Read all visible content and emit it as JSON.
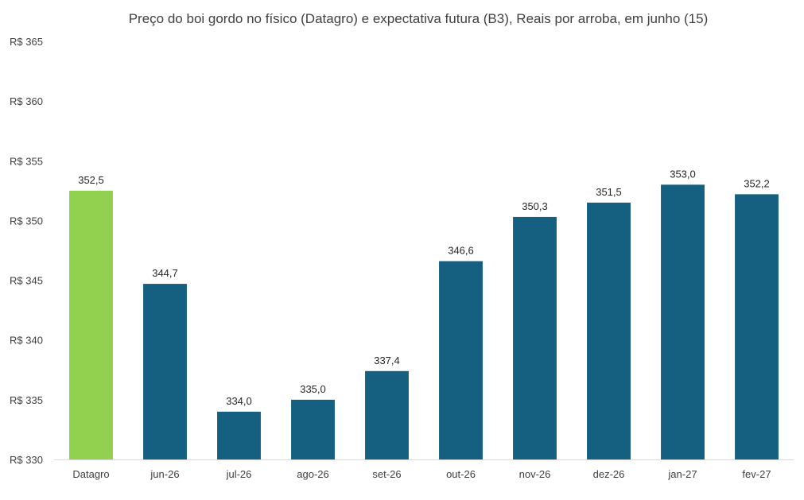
{
  "chart_data": {
    "type": "bar",
    "title": "Preço do boi gordo no físico (Datagro)  e expectativa futura (B3), Reais por arroba, em junho (15)",
    "xlabel": "",
    "ylabel": "",
    "categories": [
      "Datagro",
      "jun-26",
      "jul-26",
      "ago-26",
      "set-26",
      "out-26",
      "nov-26",
      "dez-26",
      "jan-27",
      "fev-27"
    ],
    "values": [
      352.5,
      344.7,
      334.0,
      335.0,
      337.4,
      346.6,
      350.3,
      351.5,
      353.0,
      352.2
    ],
    "value_labels": [
      "352,5",
      "344,7",
      "334,0",
      "335,0",
      "337,4",
      "346,6",
      "350,3",
      "351,5",
      "353,0",
      "352,2"
    ],
    "ylim": [
      330,
      365
    ],
    "yticks": [
      330,
      335,
      340,
      345,
      350,
      355,
      360,
      365
    ],
    "ytick_labels": [
      "R$ 330",
      "R$ 335",
      "R$ 340",
      "R$ 345",
      "R$ 350",
      "R$ 355",
      "R$ 360",
      "R$ 365"
    ],
    "bar_colors": [
      "#92d050",
      "#155f80",
      "#155f80",
      "#155f80",
      "#155f80",
      "#155f80",
      "#155f80",
      "#155f80",
      "#155f80",
      "#155f80"
    ],
    "grid": false,
    "legend": "none"
  }
}
